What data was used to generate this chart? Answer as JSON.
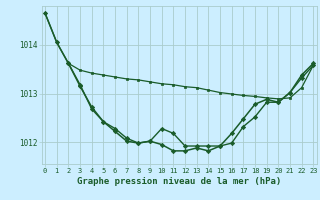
{
  "background_color": "#cceeff",
  "grid_color": "#aacccc",
  "line_color": "#1a5c2a",
  "xlabel": "Graphe pression niveau de la mer (hPa)",
  "xlabel_fontsize": 6.5,
  "xtick_fontsize": 5.0,
  "ytick_fontsize": 5.5,
  "ylim": [
    1011.55,
    1014.8
  ],
  "xlim": [
    -0.3,
    23.3
  ],
  "yticks": [
    1012,
    1013,
    1014
  ],
  "xticks": [
    0,
    1,
    2,
    3,
    4,
    5,
    6,
    7,
    8,
    9,
    10,
    11,
    12,
    13,
    14,
    15,
    16,
    17,
    18,
    19,
    20,
    21,
    22,
    23
  ],
  "series": [
    {
      "x": [
        0,
        1,
        2,
        3,
        4,
        5,
        6,
        7,
        8,
        9,
        10,
        11,
        12,
        13,
        14,
        15,
        16,
        17,
        18,
        19,
        20,
        21,
        22,
        23
      ],
      "y": [
        1014.65,
        1014.05,
        1013.62,
        1013.15,
        1012.72,
        1012.42,
        1012.22,
        1012.02,
        1011.98,
        1012.02,
        1011.95,
        1011.82,
        1011.82,
        1011.88,
        1011.82,
        1011.92,
        1012.18,
        1012.48,
        1012.78,
        1012.88,
        1012.82,
        1013.02,
        1013.38,
        1013.62
      ],
      "marker": "D",
      "markersize": 2.2,
      "linewidth": 1.1,
      "markerfacecolor": "#1a5c2a"
    },
    {
      "x": [
        0,
        1,
        2,
        3,
        4,
        5,
        6,
        7,
        8,
        9,
        10,
        11,
        12,
        13,
        14,
        15,
        16,
        17,
        18,
        19,
        20,
        21,
        22,
        23
      ],
      "y": [
        1014.65,
        1014.05,
        1013.62,
        1013.48,
        1013.42,
        1013.38,
        1013.34,
        1013.3,
        1013.28,
        1013.24,
        1013.2,
        1013.18,
        1013.14,
        1013.12,
        1013.07,
        1013.02,
        1012.99,
        1012.96,
        1012.94,
        1012.91,
        1012.89,
        1012.91,
        1013.12,
        1013.58
      ],
      "marker": "s",
      "markersize": 1.8,
      "linewidth": 0.9,
      "markerfacecolor": "#1a5c2a"
    },
    {
      "x": [
        2,
        3,
        4,
        5,
        6,
        7,
        8,
        9,
        10,
        11,
        12,
        13,
        14,
        15,
        16,
        17,
        18,
        19,
        20,
        21,
        22,
        23
      ],
      "y": [
        1013.62,
        1013.18,
        1012.68,
        1012.42,
        1012.28,
        1012.08,
        1011.98,
        1012.02,
        1012.28,
        1012.18,
        1011.92,
        1011.92,
        1011.92,
        1011.92,
        1011.98,
        1012.32,
        1012.52,
        1012.82,
        1012.82,
        1013.02,
        1013.32,
        1013.58
      ],
      "marker": "D",
      "markersize": 2.2,
      "linewidth": 1.0,
      "markerfacecolor": "#1a5c2a"
    }
  ]
}
